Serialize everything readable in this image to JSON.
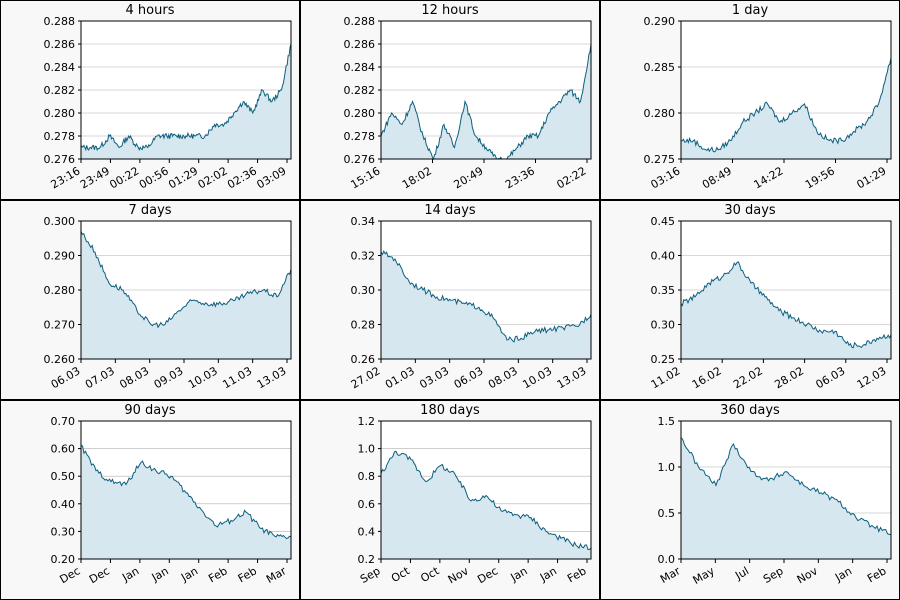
{
  "colors": {
    "line": "#0d5f7e",
    "fill": "#d6e7ef",
    "plot_bg": "#ffffff",
    "grid": "#b0b0b0",
    "frame": "#000000"
  },
  "chart_data": [
    {
      "type": "area",
      "title": "4 hours",
      "grid": true,
      "ylim": [
        0.276,
        0.288
      ],
      "yticks": [
        "0.276",
        "0.278",
        "0.280",
        "0.282",
        "0.284",
        "0.286",
        "0.288"
      ],
      "xticks": [
        "23:16",
        "23:49",
        "00:22",
        "00:56",
        "01:29",
        "02:02",
        "02:36",
        "03:09"
      ],
      "x": [
        "23:16",
        "23:30",
        "23:49",
        "23:55",
        "00:05",
        "00:15",
        "00:22",
        "00:35",
        "00:45",
        "00:56",
        "01:10",
        "01:29",
        "01:45",
        "02:02",
        "02:15",
        "02:36",
        "02:45",
        "02:55",
        "03:00",
        "03:05",
        "03:09",
        "03:15",
        "03:20"
      ],
      "values": [
        0.277,
        0.277,
        0.277,
        0.278,
        0.277,
        0.278,
        0.277,
        0.277,
        0.278,
        0.278,
        0.278,
        0.278,
        0.278,
        0.278,
        0.279,
        0.279,
        0.28,
        0.281,
        0.28,
        0.282,
        0.281,
        0.282,
        0.286
      ]
    },
    {
      "type": "area",
      "title": "12 hours",
      "grid": true,
      "ylim": [
        0.276,
        0.288
      ],
      "yticks": [
        "0.276",
        "0.278",
        "0.280",
        "0.282",
        "0.284",
        "0.286",
        "0.288"
      ],
      "xticks": [
        "15:16",
        "18:02",
        "20:49",
        "23:36",
        "02:22"
      ],
      "x": [
        "15:16",
        "16:00",
        "16:30",
        "17:00",
        "17:30",
        "18:02",
        "18:45",
        "19:30",
        "20:10",
        "20:49",
        "21:30",
        "22:10",
        "23:00",
        "23:36",
        "00:30",
        "01:30",
        "02:00",
        "02:22",
        "02:45",
        "03:00",
        "03:16"
      ],
      "values": [
        0.278,
        0.28,
        0.279,
        0.281,
        0.278,
        0.276,
        0.279,
        0.277,
        0.281,
        0.278,
        0.277,
        0.276,
        0.276,
        0.277,
        0.278,
        0.278,
        0.28,
        0.281,
        0.282,
        0.281,
        0.286
      ]
    },
    {
      "type": "area",
      "title": "1 day",
      "grid": true,
      "ylim": [
        0.275,
        0.29
      ],
      "yticks": [
        "0.275",
        "0.280",
        "0.285",
        "0.290"
      ],
      "xticks": [
        "03:16",
        "08:49",
        "14:22",
        "19:56",
        "01:29"
      ],
      "x": [
        "03:16",
        "05:00",
        "06:30",
        "08:49",
        "10:30",
        "12:00",
        "13:30",
        "14:22",
        "15:30",
        "17:00",
        "18:30",
        "19:56",
        "21:30",
        "23:00",
        "00:30",
        "01:29",
        "02:30",
        "03:16"
      ],
      "values": [
        0.277,
        0.277,
        0.276,
        0.276,
        0.277,
        0.279,
        0.28,
        0.281,
        0.279,
        0.28,
        0.281,
        0.278,
        0.277,
        0.277,
        0.278,
        0.279,
        0.281,
        0.286
      ]
    },
    {
      "type": "area",
      "title": "7 days",
      "grid": true,
      "ylim": [
        0.26,
        0.3
      ],
      "yticks": [
        "0.260",
        "0.270",
        "0.280",
        "0.290",
        "0.300"
      ],
      "xticks": [
        "06.03",
        "07.03",
        "08.03",
        "09.03",
        "10.03",
        "11.03",
        "13.03"
      ],
      "x": [
        "06.03",
        "06.03 12:00",
        "07.03",
        "07.03 12:00",
        "08.03",
        "08.03 12:00",
        "09.03",
        "09.03 12:00",
        "10.03",
        "10.03 12:00",
        "11.03",
        "11.03 12:00",
        "12.03",
        "12.03 12:00",
        "13.03",
        "13.03 06:00"
      ],
      "values": [
        0.297,
        0.291,
        0.282,
        0.28,
        0.274,
        0.27,
        0.27,
        0.274,
        0.277,
        0.276,
        0.276,
        0.277,
        0.279,
        0.28,
        0.278,
        0.286
      ]
    },
    {
      "type": "area",
      "title": "14 days",
      "grid": true,
      "ylim": [
        0.26,
        0.34
      ],
      "yticks": [
        "0.26",
        "0.28",
        "0.30",
        "0.32",
        "0.34"
      ],
      "xticks": [
        "27.02",
        "01.03",
        "03.03",
        "06.03",
        "08.03",
        "10.03",
        "13.03"
      ],
      "x": [
        "27.02",
        "28.02",
        "01.03",
        "02.03",
        "03.03",
        "04.03",
        "05.03",
        "06.03",
        "07.03",
        "08.03",
        "09.03",
        "10.03",
        "11.03",
        "12.03",
        "13.03",
        "13.03 12:00"
      ],
      "values": [
        0.322,
        0.318,
        0.305,
        0.3,
        0.296,
        0.294,
        0.292,
        0.29,
        0.284,
        0.271,
        0.272,
        0.276,
        0.277,
        0.278,
        0.279,
        0.286
      ]
    },
    {
      "type": "area",
      "title": "30 days",
      "grid": true,
      "ylim": [
        0.25,
        0.45
      ],
      "yticks": [
        "0.25",
        "0.30",
        "0.35",
        "0.40",
        "0.45"
      ],
      "xticks": [
        "11.02",
        "16.02",
        "22.02",
        "28.02",
        "06.03",
        "12.03"
      ],
      "x": [
        "11.02",
        "13.02",
        "16.02",
        "18.02",
        "20.02",
        "22.02",
        "24.02",
        "26.02",
        "28.02",
        "02.03",
        "04.03",
        "06.03",
        "08.03",
        "10.03",
        "12.03",
        "13.03"
      ],
      "values": [
        0.33,
        0.34,
        0.36,
        0.37,
        0.39,
        0.36,
        0.34,
        0.32,
        0.31,
        0.3,
        0.29,
        0.29,
        0.27,
        0.27,
        0.28,
        0.285
      ]
    },
    {
      "type": "area",
      "title": "90 days",
      "grid": true,
      "ylim": [
        0.2,
        0.7
      ],
      "yticks": [
        "0.20",
        "0.30",
        "0.40",
        "0.50",
        "0.60",
        "0.70"
      ],
      "xticks": [
        "Dec",
        "Dec",
        "Jan",
        "Jan",
        "Jan",
        "Feb",
        "Feb",
        "Mar"
      ],
      "x": [
        "Dec",
        "Dec",
        "Dec",
        "Jan",
        "Jan",
        "Jan",
        "Jan",
        "Jan",
        "Feb",
        "Feb",
        "Feb",
        "Feb",
        "Mar",
        "Mar",
        "Mar"
      ],
      "values": [
        0.61,
        0.52,
        0.48,
        0.47,
        0.55,
        0.52,
        0.5,
        0.44,
        0.38,
        0.32,
        0.34,
        0.37,
        0.31,
        0.28,
        0.28
      ]
    },
    {
      "type": "area",
      "title": "180 days",
      "grid": true,
      "ylim": [
        0.2,
        1.2
      ],
      "yticks": [
        "0.2",
        "0.4",
        "0.6",
        "0.8",
        "1.0",
        "1.2"
      ],
      "xticks": [
        "Sep",
        "Oct",
        "Oct",
        "Nov",
        "Dec",
        "Jan",
        "Jan",
        "Feb"
      ],
      "x": [
        "Sep",
        "Sep",
        "Oct",
        "Oct",
        "Oct",
        "Nov",
        "Nov",
        "Dec",
        "Dec",
        "Jan",
        "Jan",
        "Jan",
        "Feb",
        "Feb",
        "Mar"
      ],
      "values": [
        0.82,
        0.98,
        0.92,
        0.76,
        0.88,
        0.8,
        0.62,
        0.66,
        0.55,
        0.52,
        0.5,
        0.4,
        0.35,
        0.3,
        0.28
      ]
    },
    {
      "type": "area",
      "title": "360 days",
      "grid": true,
      "ylim": [
        0.0,
        1.5
      ],
      "yticks": [
        "0.0",
        "0.5",
        "1.0",
        "1.5"
      ],
      "xticks": [
        "Mar",
        "May",
        "Jul",
        "Sep",
        "Nov",
        "Jan",
        "Feb"
      ],
      "x": [
        "Mar",
        "Apr",
        "May",
        "Jun",
        "Jul",
        "Aug",
        "Sep",
        "Oct",
        "Nov",
        "Dec",
        "Jan",
        "Feb",
        "Mar"
      ],
      "values": [
        1.32,
        1.0,
        0.8,
        1.25,
        0.95,
        0.85,
        0.95,
        0.8,
        0.72,
        0.62,
        0.45,
        0.35,
        0.27
      ]
    }
  ]
}
